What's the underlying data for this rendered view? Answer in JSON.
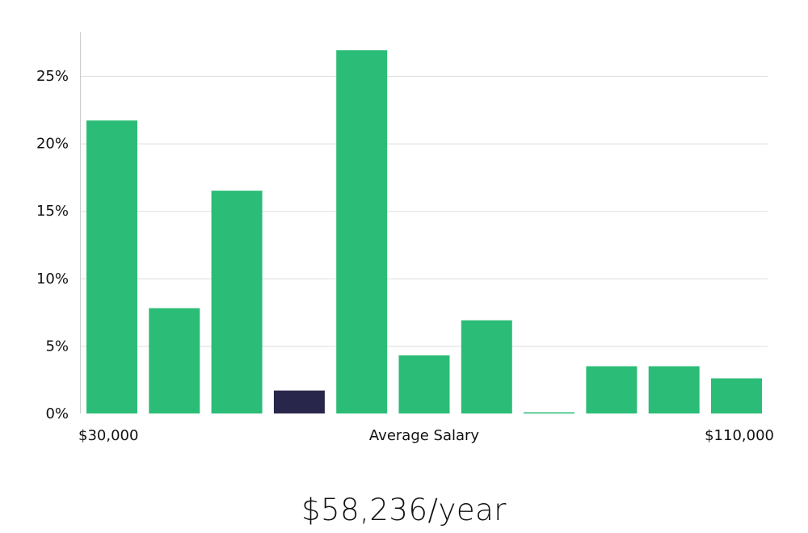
{
  "chart_data": {
    "type": "bar",
    "categories": [
      "1",
      "2",
      "3",
      "4",
      "5",
      "6",
      "7",
      "8",
      "9",
      "10",
      "11"
    ],
    "values": [
      21.7,
      7.8,
      16.5,
      1.7,
      26.9,
      4.3,
      6.9,
      0.05,
      3.5,
      3.5,
      2.6
    ],
    "highlight_index": 3,
    "ylim": [
      0,
      28
    ],
    "yticks": [
      0,
      5,
      10,
      15,
      20,
      25
    ],
    "ytick_labels": [
      "0%",
      "5%",
      "10%",
      "15%",
      "20%",
      "25%"
    ],
    "grid": true,
    "colors": {
      "bar": "#2bbd77",
      "highlight": "#28264a",
      "grid": "#dddddd",
      "axis": "#cccccc"
    },
    "x_min_label": "$30,000",
    "x_center_label": "Average Salary",
    "x_max_label": "$110,000"
  },
  "summary": {
    "average_salary": "$58,236/year"
  }
}
